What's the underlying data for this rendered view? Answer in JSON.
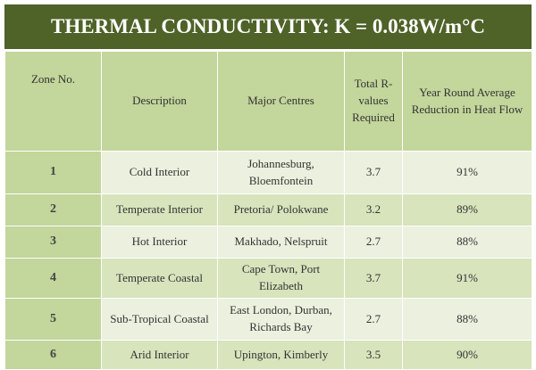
{
  "header": {
    "title": "THERMAL CONDUCTIVITY: K = 0.038W/m°C"
  },
  "table": {
    "columns": [
      "Zone No.",
      "Description",
      "Major Centres",
      "Total R-values Required",
      "Year Round Average Reduction in Heat Flow"
    ],
    "rows": [
      [
        "1",
        "Cold Interior",
        "Johannesburg, Bloemfontein",
        "3.7",
        "91%"
      ],
      [
        "2",
        "Temperate Interior",
        "Pretoria/ Polokwane",
        "3.2",
        "89%"
      ],
      [
        "3",
        "Hot Interior",
        "Makhado,  Nelspruit",
        "2.7",
        "88%"
      ],
      [
        "4",
        "Temperate Coastal",
        "Cape Town, Port Elizabeth",
        "3.7",
        "91%"
      ],
      [
        "5",
        "Sub-Tropical Coastal",
        "East London, Durban, Richards Bay",
        "2.7",
        "88%"
      ],
      [
        "6",
        "Arid Interior",
        "Upington, Kimberly",
        "3.5",
        "90%"
      ]
    ]
  }
}
